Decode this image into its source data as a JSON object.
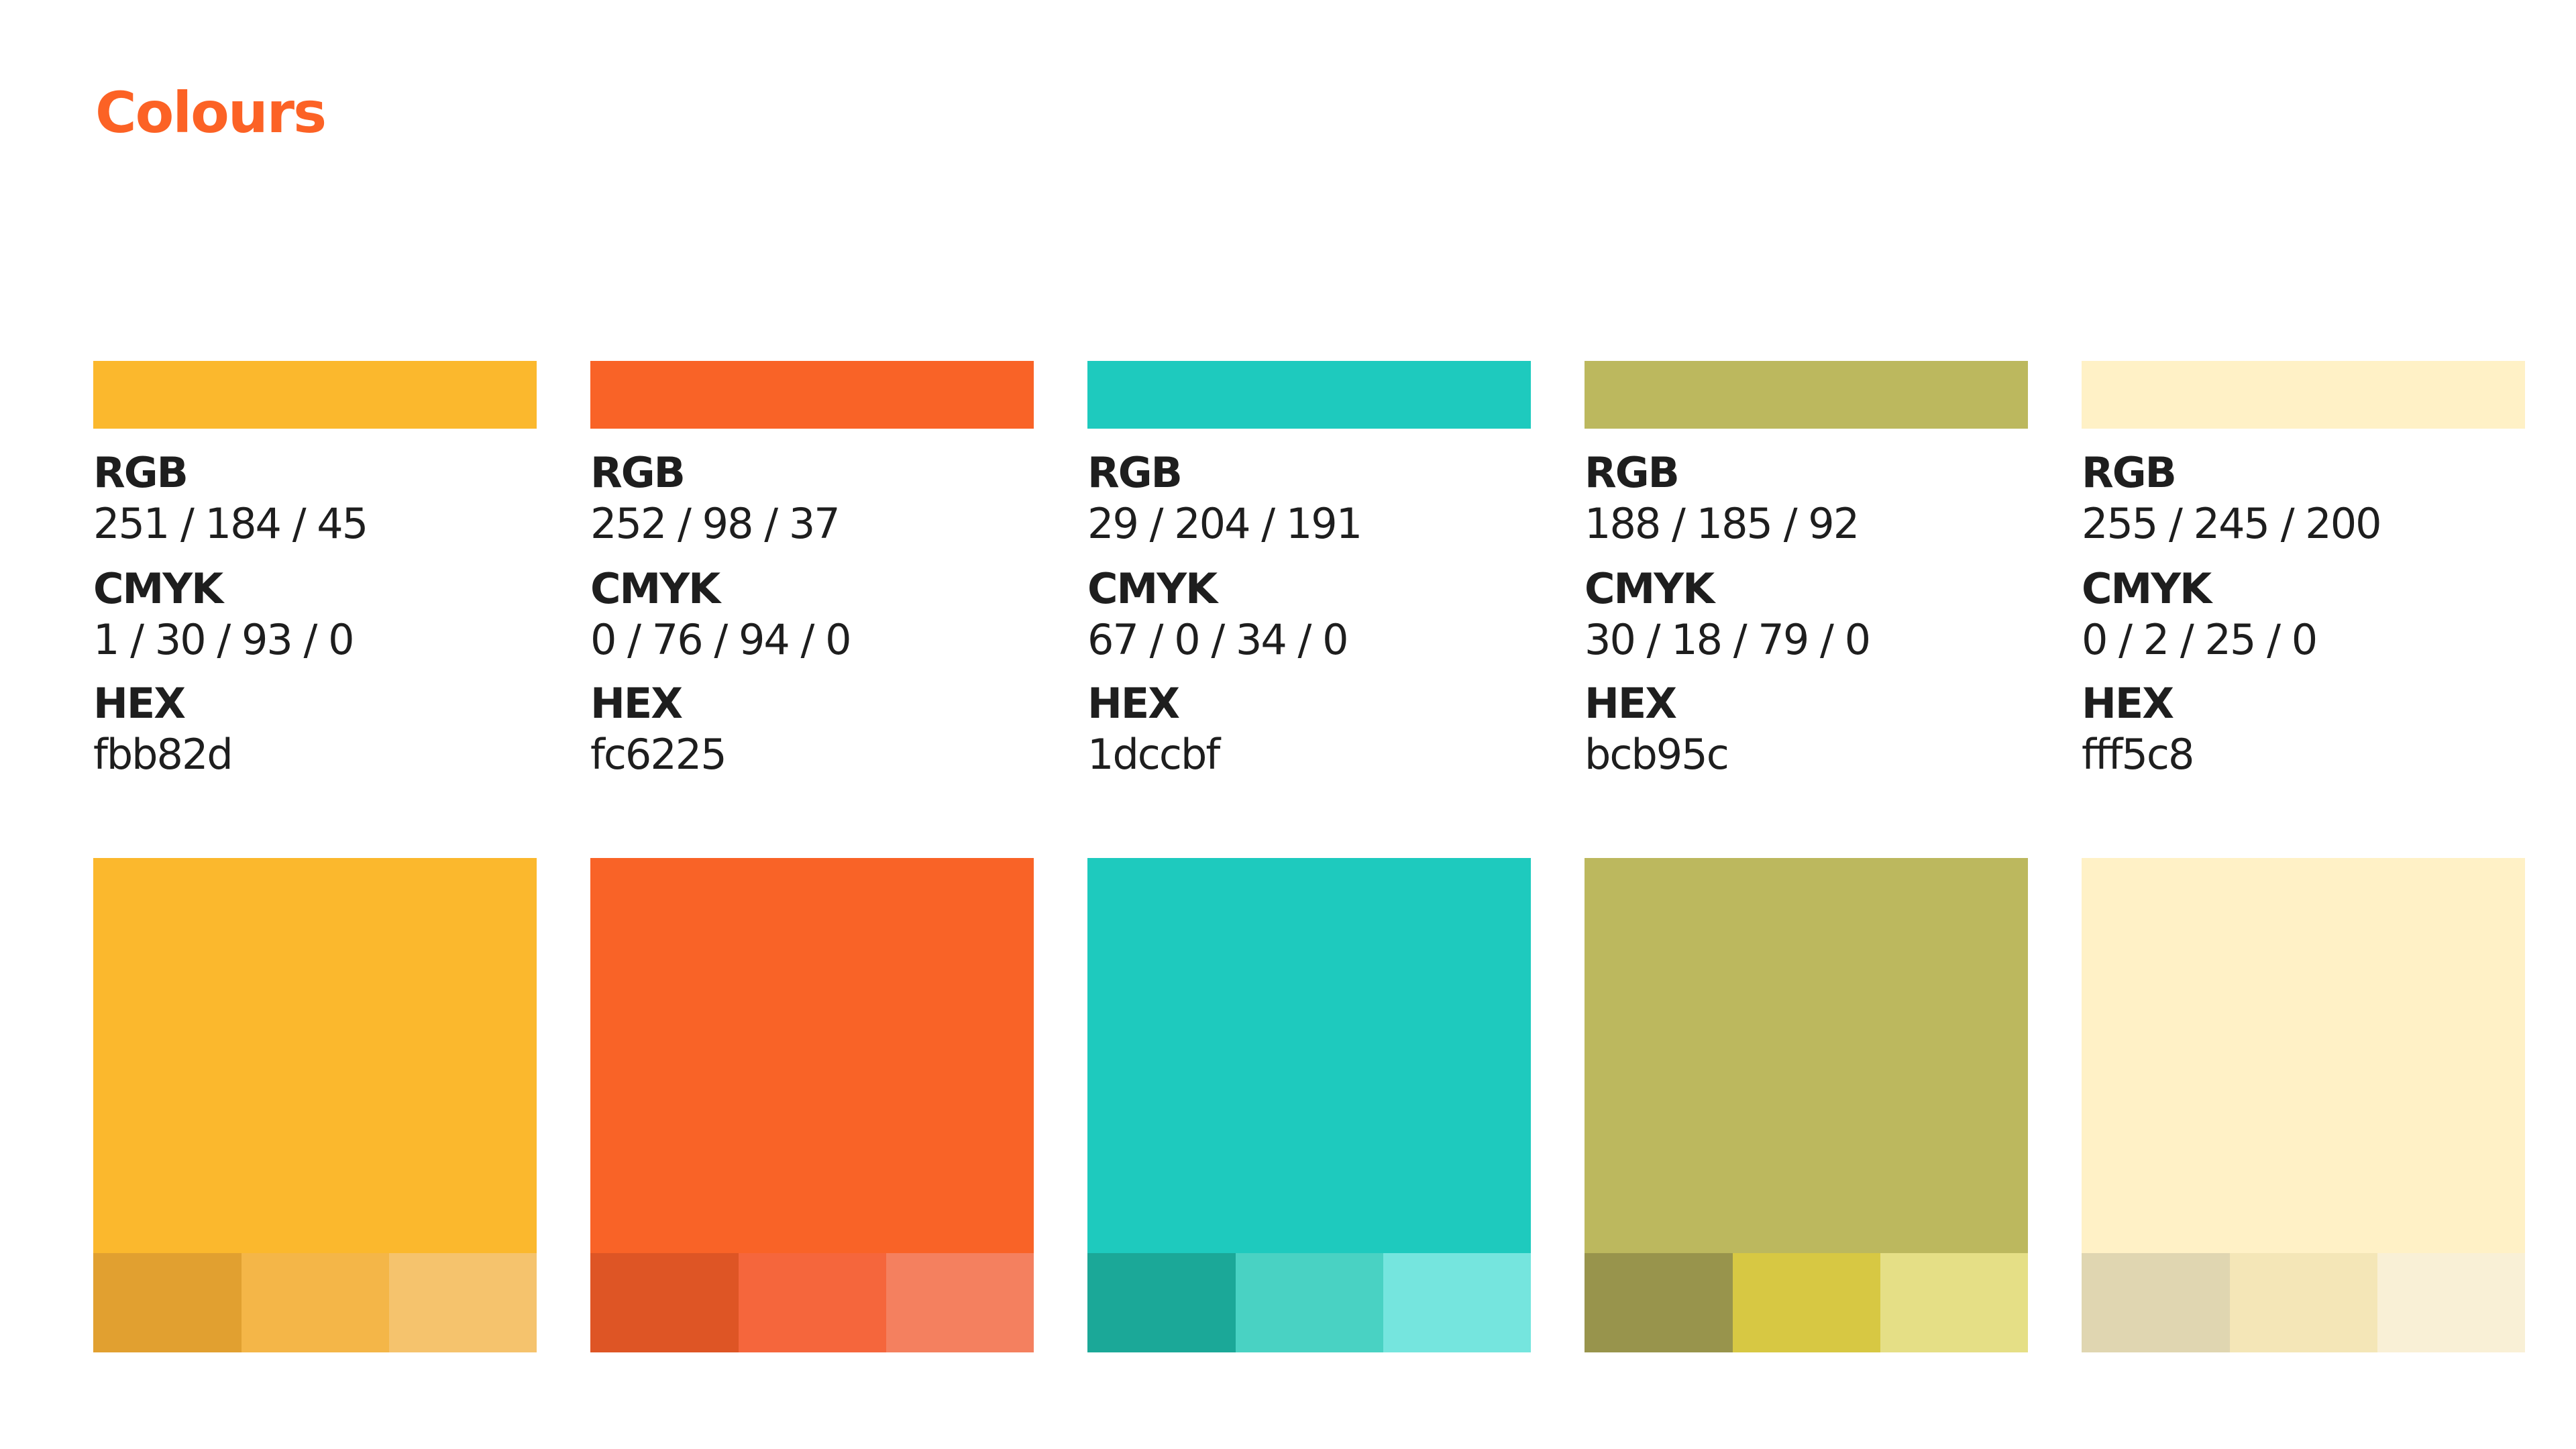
{
  "title": "Colours",
  "labels": {
    "rgb": "RGB",
    "cmyk": "CMYK",
    "hex": "HEX"
  },
  "colours": [
    {
      "rgb": "251 / 184 / 45",
      "cmyk": "1 / 30 / 93 / 0",
      "hex": "fbb82d",
      "swatch": "#fbb82d",
      "tints": [
        "#e1a030",
        "#f4b648",
        "#f5c36d"
      ]
    },
    {
      "rgb": "252 / 98 / 37",
      "cmyk": "0 / 76 / 94 / 0",
      "hex": "fc6225",
      "swatch": "#f96327",
      "tints": [
        "#de5525",
        "#f5663c",
        "#f4805f"
      ]
    },
    {
      "rgb": "29 / 204 / 191",
      "cmyk": "67 / 0 / 34 / 0",
      "hex": "1dccbf",
      "swatch": "#1ecabe",
      "tints": [
        "#1ba898",
        "#49d2c3",
        "#75e5de"
      ]
    },
    {
      "rgb": "188 / 185 / 92",
      "cmyk": "30 / 18 / 79 / 0",
      "hex": "bcb95c",
      "swatch": "#bcb85e",
      "tints": [
        "#98944c",
        "#d7c843",
        "#e5df86"
      ]
    },
    {
      "rgb": "255 / 245 / 200",
      "cmyk": "0 / 2 / 25 / 0",
      "hex": "fff5c8",
      "swatch": "#fff1c6",
      "tints": [
        "#e0d6b1",
        "#f4e6b7",
        "#f9f0d6"
      ]
    }
  ]
}
